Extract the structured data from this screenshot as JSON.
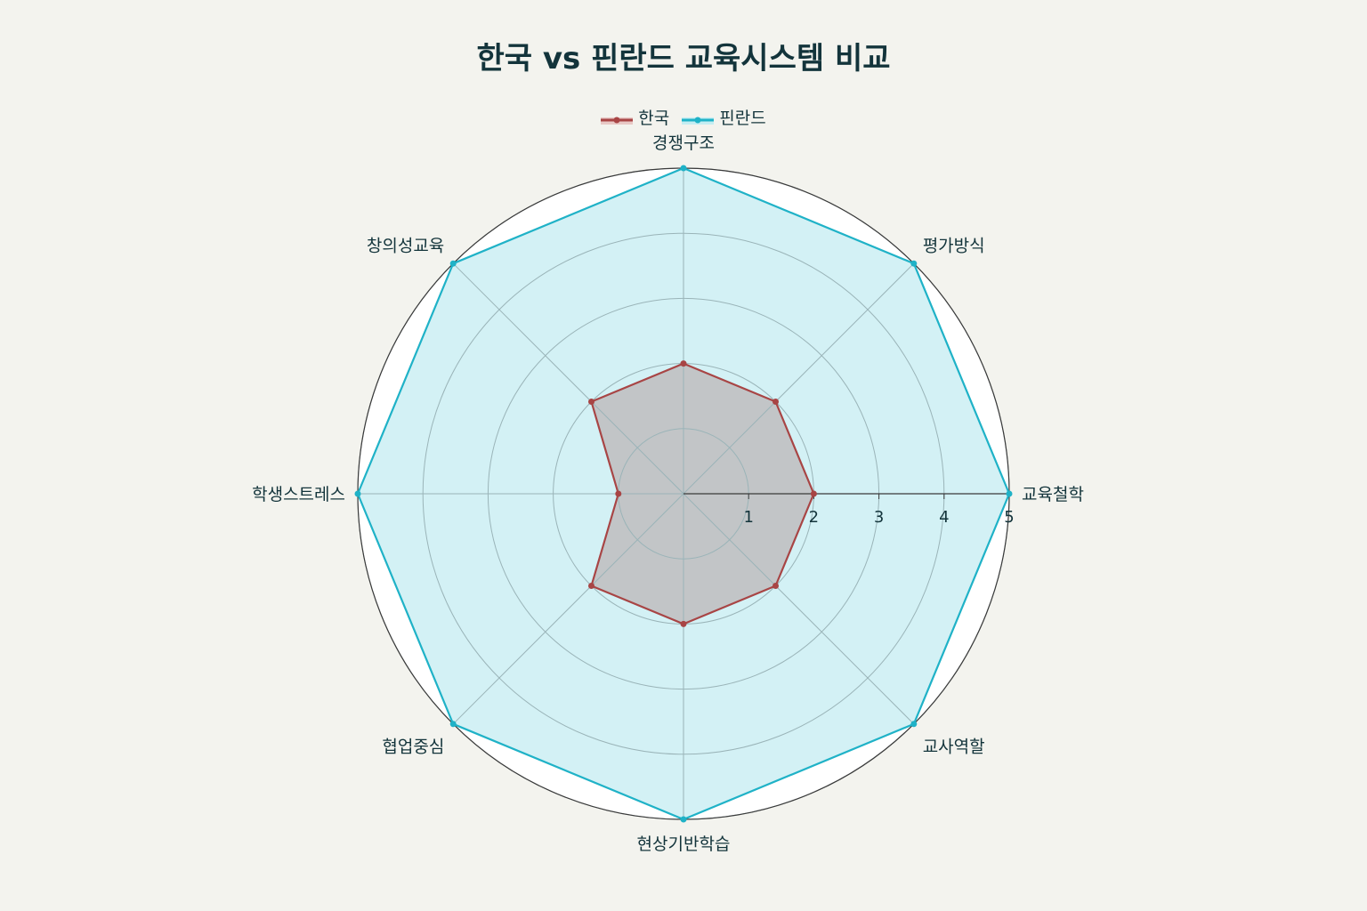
{
  "chart_data": {
    "type": "radar",
    "title": "한국 vs 핀란드 교육시스템 비교",
    "categories": [
      "교육철학",
      "평가방식",
      "경쟁구조",
      "창의성교육",
      "학생스트레스",
      "협업중심",
      "현상기반학습",
      "교사역할"
    ],
    "series": [
      {
        "name": "한국",
        "color": "#a84545",
        "fill": "#b8a8a8",
        "values": [
          2,
          2,
          2,
          2,
          1,
          2,
          2,
          2
        ]
      },
      {
        "name": "핀란드",
        "color": "#1fb2c7",
        "fill": "#b5e8ef",
        "values": [
          5,
          5,
          5,
          5,
          5,
          5,
          5,
          5
        ]
      }
    ],
    "radial_range": [
      0,
      5
    ],
    "radial_ticks": [
      "1",
      "2",
      "3",
      "4",
      "5"
    ],
    "legend_position": "top-center",
    "grid": true
  }
}
